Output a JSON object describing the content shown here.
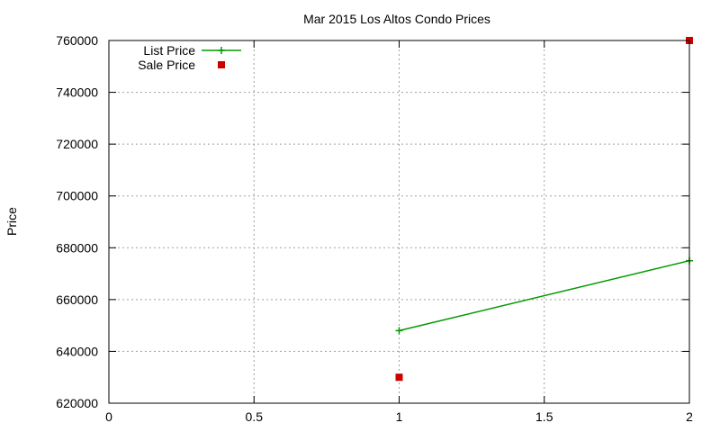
{
  "chart_data": {
    "type": "line",
    "title": "Mar 2015 Los Altos Condo Prices",
    "xlabel": "",
    "ylabel": "Price",
    "xlim": [
      0,
      2
    ],
    "ylim": [
      620000,
      760000
    ],
    "x_ticks": [
      0,
      0.5,
      1,
      1.5,
      2
    ],
    "x_tick_labels": [
      "0",
      "0.5",
      "1",
      "1.5",
      "2"
    ],
    "y_ticks": [
      620000,
      640000,
      660000,
      680000,
      700000,
      720000,
      740000,
      760000
    ],
    "y_tick_labels": [
      "620000",
      "640000",
      "660000",
      "680000",
      "700000",
      "720000",
      "740000",
      "760000"
    ],
    "grid": true,
    "legend_position": "top-left",
    "series": [
      {
        "name": "List Price",
        "style": "line-with-plus-markers",
        "color": "#009900",
        "x": [
          1,
          2
        ],
        "y": [
          648000,
          675000
        ]
      },
      {
        "name": "Sale Price",
        "style": "square-markers",
        "color": "#cc0000",
        "x": [
          1,
          2
        ],
        "y": [
          630000,
          760000
        ]
      }
    ]
  }
}
